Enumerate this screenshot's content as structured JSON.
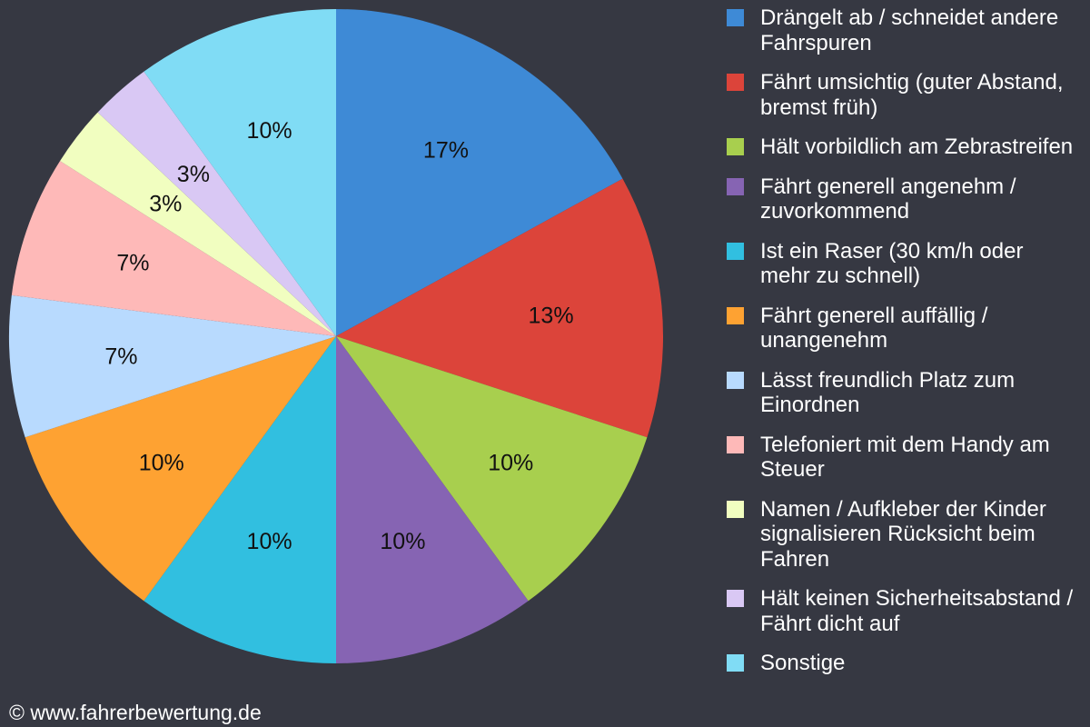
{
  "chart_data": {
    "type": "pie",
    "start": "top",
    "direction": "clockwise",
    "legend_position": "right",
    "slices": [
      {
        "label": "Drängelt ab / schneidet andere Fahrspuren",
        "value": 17,
        "data_label": "17%",
        "color": "#3e8ad6"
      },
      {
        "label": "Fährt umsichtig (guter Abstand, bremst früh)",
        "value": 13,
        "data_label": "13%",
        "color": "#dc443a"
      },
      {
        "label": "Hält vorbildlich am Zebrastreifen",
        "value": 10,
        "data_label": "10%",
        "color": "#a8cf4e"
      },
      {
        "label": "Fährt generell angenehm / zuvorkommend",
        "value": 10,
        "data_label": "10%",
        "color": "#8664b3"
      },
      {
        "label": "Ist ein Raser (30 km/h oder mehr zu schnell)",
        "value": 10,
        "data_label": "10%",
        "color": "#31bfe0"
      },
      {
        "label": "Fährt generell auffällig / unangenehm",
        "value": 10,
        "data_label": "10%",
        "color": "#fea232"
      },
      {
        "label": "Lässt freundlich Platz zum Einordnen",
        "value": 7,
        "data_label": "7%",
        "color": "#b8dafe"
      },
      {
        "label": "Telefoniert mit dem Handy am Steuer",
        "value": 7,
        "data_label": "7%",
        "color": "#feb9b8"
      },
      {
        "label": "Namen / Aufkleber der Kinder signalisieren Rücksicht beim Fahren",
        "value": 3,
        "data_label": "3%",
        "color": "#f1fec0"
      },
      {
        "label": "Hält keinen Sicherheitsabstand / Fährt dicht auf",
        "value": 3,
        "data_label": "3%",
        "color": "#d9c8f4"
      },
      {
        "label": "Sonstige",
        "value": 10,
        "data_label": "10%",
        "color": "#80dcf5"
      }
    ]
  },
  "credit": "© www.fahrerbewertung.de",
  "background": "#363842"
}
